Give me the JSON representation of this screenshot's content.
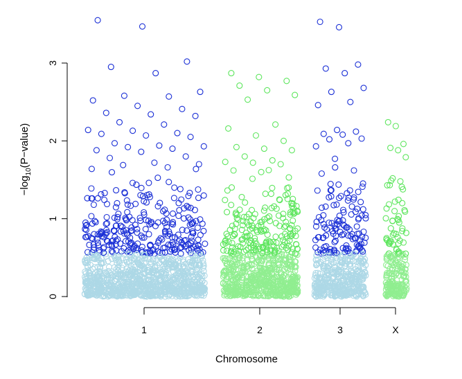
{
  "chart_data": {
    "type": "scatter",
    "title": "",
    "xlabel": "Chromosome",
    "ylabel": "-log10(P-value)",
    "ylabel_parts": {
      "prefix": "−log",
      "subscript": "10",
      "suffix": "(P−value)"
    },
    "ylim": [
      0,
      3.6
    ],
    "y_ticks": [
      {
        "value": 0,
        "label": "0"
      },
      {
        "value": 1,
        "label": "1"
      },
      {
        "value": 2,
        "label": "2"
      },
      {
        "value": 3,
        "label": "3"
      }
    ],
    "x_ticks": [
      {
        "chromosome": "1",
        "label": "1"
      },
      {
        "chromosome": "2",
        "label": "2"
      },
      {
        "chromosome": "3",
        "label": "3"
      },
      {
        "chromosome": "X",
        "label": "X"
      }
    ],
    "threshold_note": "points above ~0.5 drawn in darker shade",
    "legend": "none",
    "grid": false,
    "chromosomes": [
      {
        "name": "1",
        "base_color": "#add8e6",
        "high_color": "#1a2fd6",
        "high_cutoff": 0.55,
        "max": 3.55,
        "peaks": [
          3.55,
          3.47,
          3.02,
          2.95,
          2.87,
          2.63,
          2.58,
          2.57,
          2.52,
          2.45,
          2.41,
          2.36,
          2.34,
          2.32,
          2.24,
          2.21,
          2.14,
          2.13,
          2.1,
          2.09,
          2.07,
          2.05,
          1.97,
          1.94,
          1.93,
          1.92,
          1.9,
          1.88,
          1.86,
          1.8,
          1.78,
          1.72,
          1.7,
          1.69,
          1.66,
          1.64
        ]
      },
      {
        "name": "2",
        "base_color": "#90ee90",
        "high_color": "#5ee65e",
        "high_cutoff": 0.55,
        "max": 2.87,
        "peaks": [
          2.87,
          2.82,
          2.77,
          2.71,
          2.65,
          2.59,
          2.53,
          2.21,
          2.16,
          2.07,
          2.0,
          1.92,
          1.9,
          1.88,
          1.8,
          1.75,
          1.73,
          1.72,
          1.7,
          1.62,
          1.6,
          1.53
        ]
      },
      {
        "name": "3",
        "base_color": "#add8e6",
        "high_color": "#1a2fd6",
        "high_cutoff": 0.55,
        "max": 3.53,
        "peaks": [
          3.53,
          3.46,
          2.98,
          2.93,
          2.87,
          2.68,
          2.63,
          2.5,
          2.46,
          2.14,
          2.12,
          2.09,
          2.08,
          2.03,
          2.02,
          1.97,
          1.93,
          1.77,
          1.62,
          1.58
        ]
      },
      {
        "name": "X",
        "base_color": "#90ee90",
        "high_color": "#5ee65e",
        "high_cutoff": 0.55,
        "max": 2.24,
        "peaks": [
          2.24,
          2.19,
          1.96,
          1.91,
          1.88,
          1.79,
          1.52,
          1.48,
          1.43,
          1.22
        ]
      }
    ]
  }
}
